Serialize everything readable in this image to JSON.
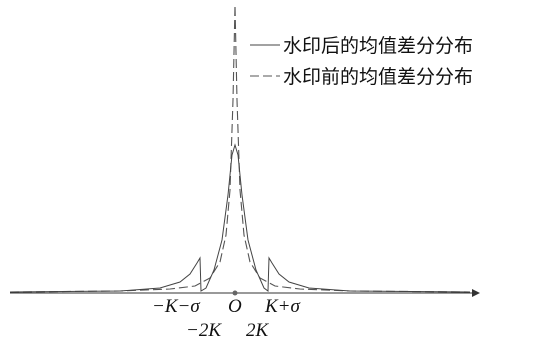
{
  "legend": [
    {
      "label": "水印后的均值差分分布"
    },
    {
      "label": "水印前的均值差分分布"
    }
  ],
  "axis_labels": {
    "minus_k_minus_sigma": "−K−σ",
    "origin": "O",
    "k_plus_sigma": "K+σ",
    "minus_2k": "−2K",
    "plus_2k": "2K"
  }
}
